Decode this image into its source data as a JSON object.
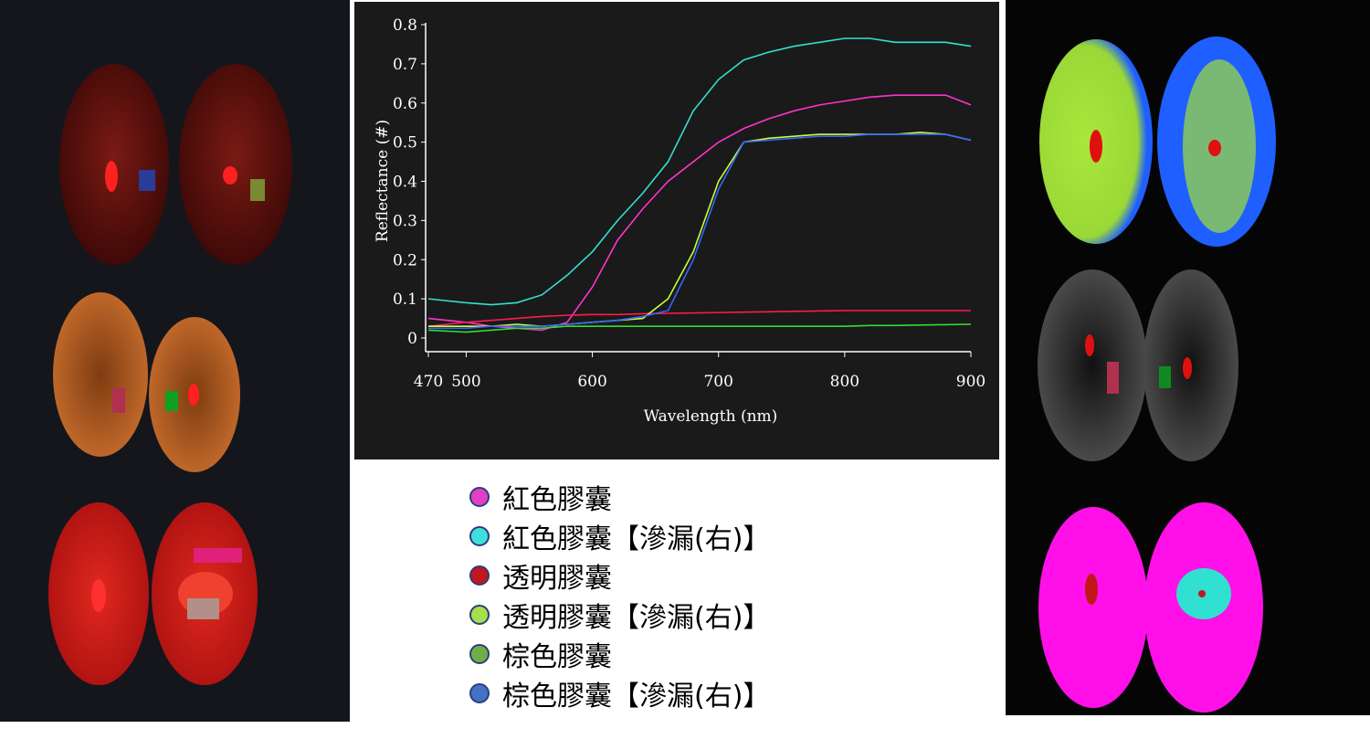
{
  "chart_data": {
    "type": "line",
    "xlabel": "Wavelength (nm)",
    "ylabel": "Reflectance (#)",
    "x": [
      470,
      500,
      520,
      540,
      560,
      580,
      600,
      620,
      640,
      660,
      680,
      700,
      720,
      740,
      760,
      780,
      800,
      820,
      840,
      860,
      880,
      900
    ],
    "xlim": [
      470,
      900
    ],
    "xticks": [
      470,
      500,
      600,
      700,
      800,
      900
    ],
    "ylim": [
      0,
      0.8
    ],
    "yticks": [
      0,
      0.1,
      0.2,
      0.3,
      0.4,
      0.5,
      0.6,
      0.7,
      0.8
    ],
    "series": [
      {
        "name": "紅色膠囊",
        "color": "#ff33cc",
        "marker_color": "#e13fc4",
        "values": [
          0.05,
          0.04,
          0.03,
          0.025,
          0.02,
          0.04,
          0.13,
          0.25,
          0.33,
          0.4,
          0.45,
          0.5,
          0.535,
          0.56,
          0.58,
          0.595,
          0.605,
          0.615,
          0.62,
          0.62,
          0.62,
          0.595
        ]
      },
      {
        "name": "紅色膠囊【滲漏(右)】",
        "color": "#33e0d0",
        "marker_color": "#3fe0dc",
        "values": [
          0.1,
          0.09,
          0.085,
          0.09,
          0.11,
          0.16,
          0.22,
          0.3,
          0.37,
          0.45,
          0.58,
          0.66,
          0.71,
          0.73,
          0.745,
          0.755,
          0.765,
          0.765,
          0.755,
          0.755,
          0.755,
          0.745
        ]
      },
      {
        "name": "透明膠囊",
        "color": "#ff1a4a",
        "marker_color": "#c4161c",
        "values": [
          0.03,
          0.04,
          0.045,
          0.05,
          0.055,
          0.058,
          0.06,
          0.06,
          0.062,
          0.063,
          0.064,
          0.065,
          0.066,
          0.067,
          0.068,
          0.069,
          0.07,
          0.07,
          0.07,
          0.07,
          0.07,
          0.07
        ]
      },
      {
        "name": "透明膠囊【滲漏(右)】",
        "color": "#ccff33",
        "marker_color": "#a6e04a",
        "values": [
          0.03,
          0.03,
          0.03,
          0.035,
          0.03,
          0.035,
          0.04,
          0.045,
          0.05,
          0.1,
          0.22,
          0.4,
          0.5,
          0.51,
          0.515,
          0.52,
          0.52,
          0.52,
          0.52,
          0.525,
          0.52,
          0.505
        ]
      },
      {
        "name": "棕色膠囊",
        "color": "#33dd33",
        "marker_color": "#70ad47",
        "values": [
          0.02,
          0.015,
          0.02,
          0.025,
          0.025,
          0.03,
          0.03,
          0.03,
          0.03,
          0.03,
          0.03,
          0.03,
          0.03,
          0.03,
          0.03,
          0.03,
          0.03,
          0.032,
          0.032,
          0.033,
          0.034,
          0.035
        ]
      },
      {
        "name": "棕色膠囊【滲漏(右)】",
        "color": "#3366ff",
        "marker_color": "#4472c4",
        "values": [
          0.025,
          0.025,
          0.03,
          0.03,
          0.03,
          0.035,
          0.04,
          0.045,
          0.055,
          0.07,
          0.2,
          0.38,
          0.5,
          0.505,
          0.51,
          0.515,
          0.515,
          0.52,
          0.52,
          0.52,
          0.52,
          0.505
        ]
      }
    ]
  }
}
